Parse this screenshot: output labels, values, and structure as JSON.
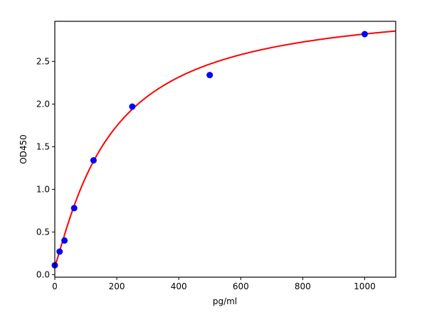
{
  "chart_data": {
    "type": "scatter",
    "title": "",
    "xlabel": "pg/ml",
    "ylabel": "OD450",
    "xlim": [
      0,
      1100
    ],
    "ylim": [
      -0.03,
      2.97
    ],
    "xticks": [
      0,
      200,
      400,
      600,
      800,
      1000
    ],
    "yticks": [
      0.0,
      0.5,
      1.0,
      1.5,
      2.0,
      2.5
    ],
    "xtick_labels": [
      "0",
      "200",
      "400",
      "600",
      "800",
      "1000"
    ],
    "ytick_labels": [
      "0.0",
      "0.5",
      "1.0",
      "1.5",
      "2.0",
      "2.5"
    ],
    "grid": false,
    "series": [
      {
        "kind": "points",
        "color": "#0000ff",
        "x": [
          0,
          15.6,
          31.25,
          62.5,
          125,
          250,
          500,
          1000
        ],
        "y": [
          0.11,
          0.27,
          0.4,
          0.78,
          1.34,
          1.97,
          2.34,
          2.82
        ]
      },
      {
        "kind": "fit-curve",
        "color": "#ff0000",
        "model": "4PL",
        "params": {
          "bottom": 0.1,
          "top": 3.2,
          "ec50": 180,
          "hill": 1.15
        }
      }
    ]
  }
}
